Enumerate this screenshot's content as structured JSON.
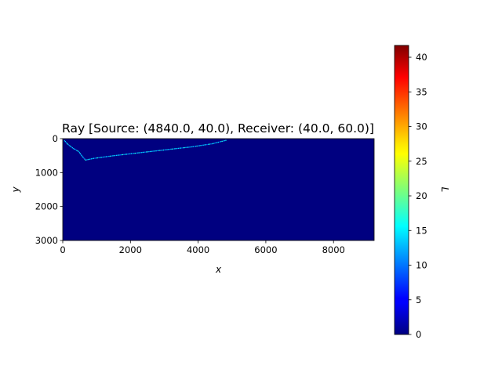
{
  "chart_data": {
    "type": "heatmap",
    "title": "Ray [Source: (4840.0, 40.0), Receiver: (40.0, 60.0)]",
    "xlabel": "x",
    "ylabel": "y",
    "xlim": [
      0,
      9200
    ],
    "ylim": [
      3000,
      0
    ],
    "x_ticks": [
      0,
      2000,
      4000,
      6000,
      8000
    ],
    "y_ticks": [
      0,
      1000,
      2000,
      3000
    ],
    "background_value": 0,
    "colormap": "jet",
    "colorbar": {
      "label": "L",
      "min": 0,
      "max": 41.7,
      "ticks": [
        0,
        5,
        10,
        15,
        20,
        25,
        30,
        35,
        40
      ]
    },
    "ray_path": [
      {
        "x": 40,
        "y": 60
      },
      {
        "x": 130,
        "y": 160
      },
      {
        "x": 300,
        "y": 290
      },
      {
        "x": 460,
        "y": 380
      },
      {
        "x": 560,
        "y": 520
      },
      {
        "x": 660,
        "y": 630
      },
      {
        "x": 900,
        "y": 580
      },
      {
        "x": 1500,
        "y": 500
      },
      {
        "x": 2200,
        "y": 420
      },
      {
        "x": 3000,
        "y": 330
      },
      {
        "x": 3800,
        "y": 240
      },
      {
        "x": 4400,
        "y": 150
      },
      {
        "x": 4840,
        "y": 40
      }
    ],
    "ray_cell_values": [
      12,
      15,
      9,
      14,
      17,
      11,
      13,
      16,
      10,
      14
    ]
  }
}
